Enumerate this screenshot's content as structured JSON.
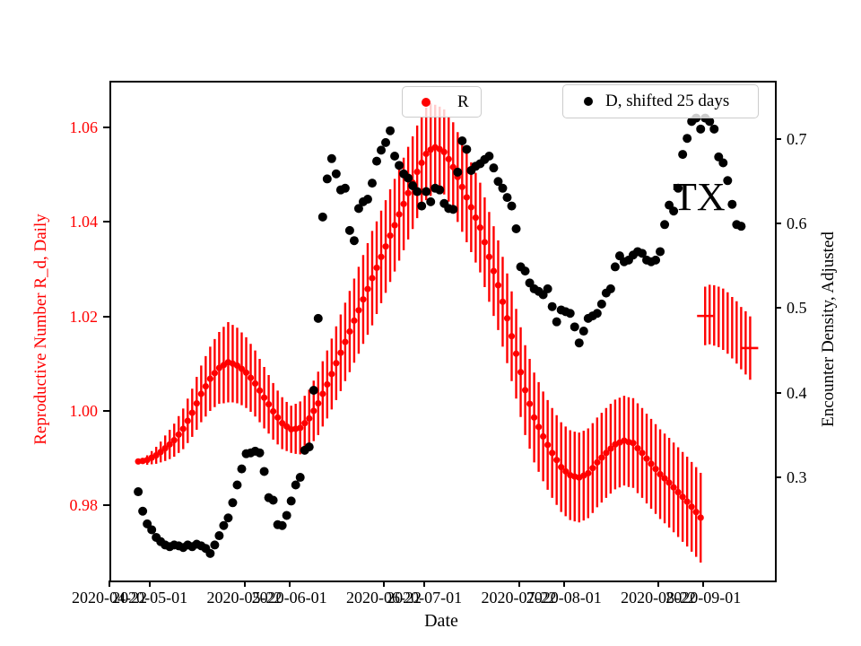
{
  "figure": {
    "xlabel": "Date",
    "ylabel_left": "Reproductive Number R_d, Daily",
    "ylabel_right": "Encounter Density, Adjusted",
    "annotation": "TX",
    "accent_red": "#ff0000",
    "accent_black": "#000000",
    "legend": [
      {
        "label": "R",
        "color": "#ff0000"
      },
      {
        "label": "D, shifted 25 days",
        "color": "#000000"
      }
    ]
  },
  "chart_data": {
    "type": "scatter",
    "title": "",
    "xlabel": "Date",
    "ylabel_left": "Reproductive Number R_d, Daily",
    "ylabel_right": "Encounter Density, Adjusted",
    "annotation": "TX",
    "grid": false,
    "x_axis_days_from": "2020-04-22",
    "xlim_days": [
      0,
      147.5
    ],
    "ylim_left": [
      0.9645,
      1.0699
    ],
    "ylim_right": [
      0.18,
      0.769
    ],
    "x_ticks": [
      {
        "day": 0,
        "label": "2020-04-22"
      },
      {
        "day": 9,
        "label": "2020-05-01"
      },
      {
        "day": 30,
        "label": "2020-05-22"
      },
      {
        "day": 40,
        "label": "2020-06-01"
      },
      {
        "day": 61,
        "label": "2020-06-22"
      },
      {
        "day": 70,
        "label": "2020-07-01"
      },
      {
        "day": 91,
        "label": "2020-07-22"
      },
      {
        "day": 101,
        "label": "2020-08-01"
      },
      {
        "day": 122,
        "label": "2020-08-22"
      },
      {
        "day": 132,
        "label": "2020-09-01"
      }
    ],
    "y_ticks_left": [
      {
        "v": 0.98,
        "label": "0.98"
      },
      {
        "v": 1.0,
        "label": "1.00"
      },
      {
        "v": 1.02,
        "label": "1.02"
      },
      {
        "v": 1.04,
        "label": "1.04"
      },
      {
        "v": 1.06,
        "label": "1.06"
      }
    ],
    "y_ticks_right": [
      {
        "v": 0.3,
        "label": "0.3"
      },
      {
        "v": 0.4,
        "label": "0.4"
      },
      {
        "v": 0.5,
        "label": "0.5"
      },
      {
        "v": 0.6,
        "label": "0.6"
      },
      {
        "v": 0.7,
        "label": "0.7"
      }
    ],
    "series": [
      {
        "name": "R",
        "axis": "left",
        "color": "#ff0000",
        "style": "dots-with-errorbars",
        "start_day": 6,
        "step_days": 1,
        "values": [
          0.9897,
          0.9898,
          0.99,
          0.9905,
          0.991,
          0.9917,
          0.9925,
          0.9933,
          0.9942,
          0.9954,
          0.9966,
          0.9983,
          1.0,
          1.002,
          1.004,
          1.0056,
          1.0072,
          1.0084,
          1.0095,
          1.0101,
          1.0107,
          1.0104,
          1.01,
          1.0093,
          1.0085,
          1.0074,
          1.0062,
          1.0047,
          1.0032,
          1.0018,
          1.0003,
          0.999,
          0.9978,
          0.9971,
          0.9965,
          0.9966,
          0.9968,
          0.9978,
          0.9988,
          1.0004,
          1.002,
          1.004,
          1.006,
          1.0082,
          1.0105,
          1.0127,
          1.015,
          1.0172,
          1.0195,
          1.0217,
          1.024,
          1.0262,
          1.0285,
          1.0307,
          1.033,
          1.0352,
          1.0375,
          1.0397,
          1.042,
          1.0442,
          1.0465,
          1.0487,
          1.051,
          1.0529,
          1.0548,
          1.0557,
          1.0562,
          1.0558,
          1.0552,
          1.0537,
          1.052,
          1.0499,
          1.0478,
          1.0456,
          1.0435,
          1.0413,
          1.0392,
          1.0361,
          1.033,
          1.03,
          1.027,
          1.0235,
          1.02,
          1.0162,
          1.0125,
          1.0086,
          1.0048,
          1.0019,
          0.999,
          0.997,
          0.995,
          0.9932,
          0.9915,
          0.99,
          0.9885,
          0.9876,
          0.9868,
          0.9865,
          0.9863,
          0.9867,
          0.9872,
          0.9883,
          0.9895,
          0.9905,
          0.9915,
          0.9924,
          0.9933,
          0.9937,
          0.9941,
          0.9938,
          0.9936,
          0.9925,
          0.9915,
          0.9903,
          0.9892,
          0.9881,
          0.987,
          0.9861,
          0.9852,
          0.9842,
          0.9832,
          0.9822,
          0.9812,
          0.9801,
          0.979,
          0.9778
        ],
        "errors": [
          0.0002,
          0.0006,
          0.001,
          0.0014,
          0.0018,
          0.0022,
          0.0027,
          0.0031,
          0.0035,
          0.0039,
          0.0043,
          0.0047,
          0.0051,
          0.0056,
          0.006,
          0.0064,
          0.0068,
          0.0072,
          0.0076,
          0.0081,
          0.0085,
          0.0082,
          0.008,
          0.0077,
          0.0075,
          0.0072,
          0.007,
          0.0067,
          0.0065,
          0.0062,
          0.006,
          0.0057,
          0.0055,
          0.0052,
          0.005,
          0.0053,
          0.0056,
          0.0058,
          0.0061,
          0.0064,
          0.0067,
          0.0069,
          0.0072,
          0.0075,
          0.0078,
          0.0081,
          0.0083,
          0.0086,
          0.0089,
          0.0092,
          0.0094,
          0.0097,
          0.01,
          0.0098,
          0.0098,
          0.0098,
          0.0098,
          0.0098,
          0.0098,
          0.0098,
          0.0098,
          0.0098,
          0.0098,
          0.0098,
          0.0098,
          0.0098,
          0.009,
          0.009,
          0.009,
          0.009,
          0.0095,
          0.0095,
          0.0095,
          0.0095,
          0.0095,
          0.0095,
          0.0095,
          0.0095,
          0.0095,
          0.0095,
          0.0095,
          0.0095,
          0.0095,
          0.0095,
          0.0095,
          0.0095,
          0.0095,
          0.0095,
          0.0095,
          0.0095,
          0.0095,
          0.0095,
          0.0095,
          0.0095,
          0.0095,
          0.0095,
          0.0095,
          0.0095,
          0.0095,
          0.0095,
          0.0095,
          0.0095,
          0.0095,
          0.0095,
          0.0095,
          0.0095,
          0.0095,
          0.0095,
          0.0095,
          0.0095,
          0.0095,
          0.0095,
          0.0095,
          0.0095,
          0.0095,
          0.0095,
          0.0095,
          0.0095,
          0.0095,
          0.0095,
          0.0095,
          0.0095,
          0.0095,
          0.0095,
          0.0095,
          0.0095
        ]
      },
      {
        "name": "R detached segment",
        "axis": "left",
        "color": "#ff0000",
        "style": "errorbars-with-end-dashes",
        "start_day": 132,
        "step_days": 1,
        "values": [
          1.0205,
          1.0208,
          1.0206,
          1.0203,
          1.0198,
          1.019,
          1.018,
          1.017,
          1.0158,
          1.0148,
          1.0137
        ],
        "errors": [
          0.0062,
          0.0063,
          0.0064,
          0.0064,
          0.0065,
          0.0065,
          0.0065,
          0.0066,
          0.0066,
          0.0067,
          0.0067
        ]
      },
      {
        "name": "D, shifted 25 days",
        "axis": "right",
        "color": "#000000",
        "style": "dots",
        "start_day": 6,
        "step_days": 1,
        "values": [
          0.285,
          0.262,
          0.247,
          0.24,
          0.231,
          0.226,
          0.222,
          0.22,
          0.222,
          0.221,
          0.219,
          0.222,
          0.22,
          0.223,
          0.221,
          0.218,
          0.212,
          0.222,
          0.233,
          0.245,
          0.254,
          0.272,
          0.293,
          0.312,
          0.33,
          0.331,
          0.333,
          0.331,
          0.309,
          0.278,
          0.275,
          0.246,
          0.245,
          0.257,
          0.274,
          0.293,
          0.302,
          0.334,
          0.338,
          0.405,
          0.49,
          0.61,
          0.655,
          0.679,
          0.661,
          0.642,
          0.644,
          0.594,
          0.582,
          0.62,
          0.628,
          0.631,
          0.65,
          0.676,
          0.689,
          0.698,
          0.712,
          0.682,
          0.671,
          0.661,
          0.656,
          0.647,
          0.64,
          0.623,
          0.64,
          0.628,
          0.644,
          0.642,
          0.626,
          0.62,
          0.619,
          0.663,
          0.7,
          0.69,
          0.665,
          0.67,
          0.673,
          0.678,
          0.682,
          0.668,
          0.652,
          0.644,
          0.633,
          0.623,
          0.596,
          0.551,
          0.546,
          0.532,
          0.525,
          0.522,
          0.518,
          0.525,
          0.504,
          0.486,
          0.5,
          0.498,
          0.496,
          0.48,
          0.461,
          0.475,
          0.49,
          0.493,
          0.496,
          0.507,
          0.52,
          0.525,
          0.551,
          0.564,
          0.557,
          0.559,
          0.565,
          0.569,
          0.567,
          0.559,
          0.557,
          0.559,
          0.569,
          0.601,
          0.624,
          0.617,
          0.644,
          0.684,
          0.703,
          0.723,
          0.727,
          0.714,
          0.727,
          0.723,
          0.714,
          0.681,
          0.674,
          0.653,
          0.625,
          0.601,
          0.599
        ]
      }
    ]
  }
}
